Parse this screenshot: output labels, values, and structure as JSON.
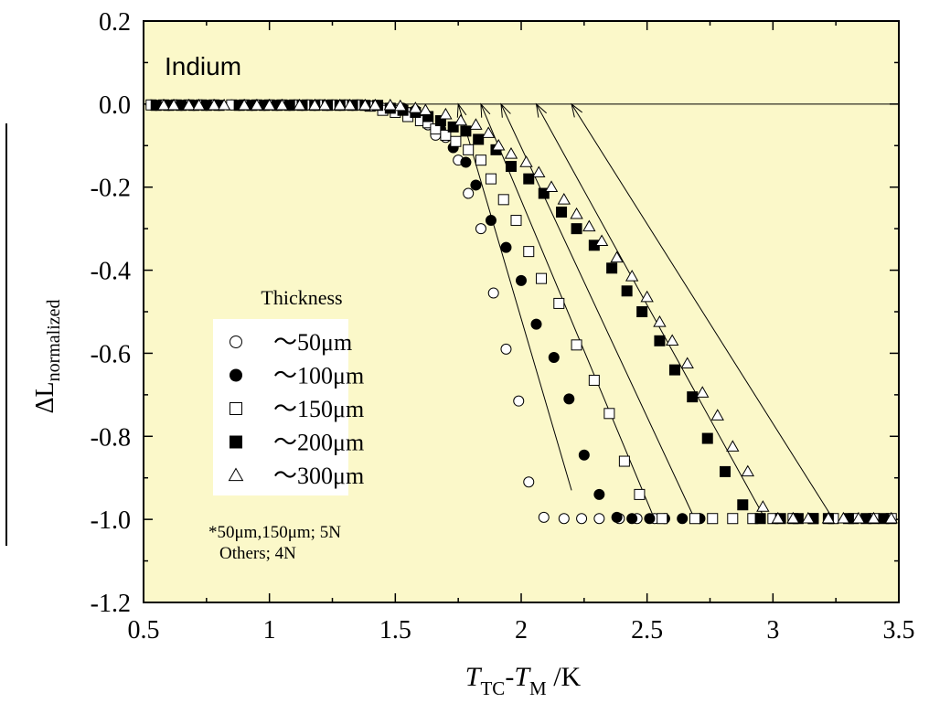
{
  "chart_data": {
    "type": "scatter",
    "annotation": "Indium",
    "ylabel": "ΔL",
    "ylabel_sub": "normalized",
    "xlabel_parts": [
      "T",
      "TC",
      "-",
      "T",
      "M",
      " /K"
    ],
    "xlim": [
      0.5,
      3.5
    ],
    "ylim": [
      -1.2,
      0.2
    ],
    "x_ticks": [
      0.5,
      1,
      1.5,
      2,
      2.5,
      3,
      3.5
    ],
    "x_tick_labels": [
      "0.5",
      "1",
      "1.5",
      "2",
      "2.5",
      "3",
      "3.5"
    ],
    "y_ticks": [
      0.2,
      0.0,
      -0.2,
      -0.4,
      -0.6,
      -0.8,
      -1.0,
      -1.2
    ],
    "y_tick_labels": [
      "0.2",
      "0.0",
      "-0.2",
      "-0.4",
      "-0.6",
      "-0.8",
      "-1.0",
      "-1.2"
    ],
    "background_color": "#fbf8c9",
    "grid": false,
    "legend": {
      "title": "Thickness",
      "placement": "lower-left",
      "entries": [
        "～50μm",
        "～100μm",
        "～150μm",
        "～200μm",
        "～300μm"
      ]
    },
    "note_lines": [
      "*50μm,150μm; 5N",
      "Others; 4N"
    ],
    "series": [
      {
        "marker": "circle-open",
        "x": [
          0.53,
          0.58,
          0.63,
          0.68,
          0.73,
          0.78,
          0.85,
          0.9,
          0.95,
          1.0,
          1.05,
          1.1,
          1.15,
          1.2,
          1.25,
          1.3,
          1.35,
          1.4,
          1.45,
          1.5,
          1.55,
          1.6,
          1.63,
          1.66,
          1.7,
          1.75,
          1.79,
          1.84,
          1.89,
          1.94,
          1.99,
          2.03,
          2.09,
          2.17,
          2.24,
          2.31,
          2.39,
          2.46,
          2.53
        ],
        "y": [
          -0.002,
          -0.002,
          -0.002,
          -0.002,
          -0.002,
          -0.002,
          -0.002,
          -0.002,
          -0.002,
          -0.002,
          -0.002,
          -0.002,
          -0.002,
          -0.002,
          -0.002,
          -0.002,
          -0.002,
          -0.005,
          -0.01,
          -0.015,
          -0.02,
          -0.03,
          -0.05,
          -0.075,
          -0.08,
          -0.135,
          -0.215,
          -0.3,
          -0.455,
          -0.59,
          -0.715,
          -0.91,
          -0.995,
          -0.998,
          -0.998,
          -0.998,
          -0.998,
          -0.998,
          -0.998
        ]
      },
      {
        "marker": "circle-filled",
        "x": [
          0.55,
          0.6,
          0.65,
          0.7,
          0.75,
          0.8,
          0.88,
          0.93,
          0.98,
          1.03,
          1.08,
          1.13,
          1.18,
          1.23,
          1.28,
          1.33,
          1.38,
          1.43,
          1.48,
          1.53,
          1.58,
          1.63,
          1.68,
          1.73,
          1.78,
          1.82,
          1.88,
          1.94,
          2.0,
          2.06,
          2.13,
          2.19,
          2.25,
          2.31,
          2.38,
          2.44,
          2.51,
          2.57,
          2.64,
          2.71
        ],
        "y": [
          -0.003,
          -0.003,
          -0.003,
          -0.003,
          -0.003,
          -0.003,
          -0.003,
          -0.003,
          -0.003,
          -0.003,
          -0.003,
          -0.003,
          -0.003,
          -0.003,
          -0.003,
          -0.003,
          -0.003,
          -0.003,
          -0.008,
          -0.01,
          -0.015,
          -0.03,
          -0.06,
          -0.105,
          -0.14,
          -0.195,
          -0.28,
          -0.345,
          -0.425,
          -0.53,
          -0.61,
          -0.71,
          -0.845,
          -0.94,
          -0.995,
          -0.998,
          -0.998,
          -0.998,
          -0.998,
          -0.998
        ]
      },
      {
        "marker": "square-open",
        "x": [
          0.53,
          0.58,
          0.63,
          0.68,
          0.73,
          0.78,
          0.85,
          0.9,
          0.95,
          1.0,
          1.05,
          1.1,
          1.15,
          1.2,
          1.25,
          1.3,
          1.35,
          1.4,
          1.45,
          1.5,
          1.55,
          1.6,
          1.63,
          1.66,
          1.7,
          1.74,
          1.79,
          1.84,
          1.88,
          1.93,
          1.98,
          2.03,
          2.08,
          2.15,
          2.22,
          2.29,
          2.35,
          2.41,
          2.47,
          2.56,
          2.69,
          2.76,
          2.84,
          2.92,
          3.0,
          3.08,
          3.16,
          3.24,
          3.32,
          3.4,
          3.47
        ],
        "y": [
          -0.002,
          -0.002,
          -0.002,
          -0.002,
          -0.002,
          -0.002,
          -0.002,
          -0.002,
          -0.002,
          -0.002,
          -0.002,
          -0.002,
          -0.002,
          -0.002,
          -0.002,
          -0.002,
          -0.002,
          -0.005,
          -0.015,
          -0.02,
          -0.03,
          -0.04,
          -0.045,
          -0.06,
          -0.075,
          -0.09,
          -0.11,
          -0.135,
          -0.18,
          -0.23,
          -0.28,
          -0.355,
          -0.42,
          -0.48,
          -0.58,
          -0.665,
          -0.745,
          -0.86,
          -0.94,
          -0.998,
          -0.998,
          -0.998,
          -0.998,
          -0.998,
          -0.998,
          -0.998,
          -0.998,
          -0.998,
          -0.998,
          -0.998,
          -0.998
        ]
      },
      {
        "marker": "square-filled",
        "x": [
          0.55,
          0.6,
          0.65,
          0.7,
          0.75,
          0.8,
          0.88,
          0.93,
          0.98,
          1.03,
          1.08,
          1.13,
          1.18,
          1.23,
          1.28,
          1.33,
          1.38,
          1.43,
          1.48,
          1.53,
          1.58,
          1.63,
          1.68,
          1.73,
          1.78,
          1.83,
          1.9,
          1.96,
          2.03,
          2.09,
          2.16,
          2.22,
          2.29,
          2.36,
          2.42,
          2.48,
          2.55,
          2.61,
          2.68,
          2.74,
          2.81,
          2.88,
          2.95,
          3.03,
          3.1,
          3.16,
          3.22,
          3.3,
          3.37,
          3.44
        ],
        "y": [
          -0.003,
          -0.003,
          -0.003,
          -0.003,
          -0.003,
          -0.003,
          -0.003,
          -0.003,
          -0.003,
          -0.003,
          -0.003,
          -0.003,
          -0.003,
          -0.003,
          -0.003,
          -0.003,
          -0.003,
          -0.003,
          -0.01,
          -0.015,
          -0.02,
          -0.03,
          -0.04,
          -0.055,
          -0.065,
          -0.085,
          -0.11,
          -0.15,
          -0.18,
          -0.215,
          -0.26,
          -0.3,
          -0.34,
          -0.395,
          -0.45,
          -0.5,
          -0.57,
          -0.64,
          -0.705,
          -0.805,
          -0.885,
          -0.965,
          -0.998,
          -0.998,
          -0.998,
          -0.998,
          -0.998,
          -0.998,
          -0.998,
          -0.998
        ]
      },
      {
        "marker": "triangle-open",
        "x": [
          0.58,
          0.62,
          0.68,
          0.72,
          0.78,
          0.82,
          0.9,
          0.95,
          1.0,
          1.05,
          1.12,
          1.18,
          1.22,
          1.28,
          1.32,
          1.38,
          1.42,
          1.48,
          1.52,
          1.58,
          1.62,
          1.7,
          1.76,
          1.82,
          1.87,
          1.91,
          1.96,
          2.02,
          2.07,
          2.12,
          2.17,
          2.22,
          2.27,
          2.32,
          2.38,
          2.44,
          2.5,
          2.55,
          2.6,
          2.66,
          2.72,
          2.78,
          2.84,
          2.9,
          2.96,
          3.02,
          3.08,
          3.14,
          3.22,
          3.28,
          3.34,
          3.4,
          3.47
        ],
        "y": [
          -0.003,
          -0.003,
          -0.003,
          -0.003,
          -0.003,
          -0.003,
          -0.003,
          -0.003,
          -0.003,
          -0.003,
          -0.003,
          -0.003,
          -0.003,
          -0.003,
          -0.003,
          -0.003,
          -0.003,
          -0.003,
          -0.005,
          -0.01,
          -0.015,
          -0.025,
          -0.04,
          -0.05,
          -0.07,
          -0.1,
          -0.12,
          -0.14,
          -0.165,
          -0.2,
          -0.23,
          -0.265,
          -0.295,
          -0.33,
          -0.37,
          -0.415,
          -0.465,
          -0.525,
          -0.57,
          -0.625,
          -0.695,
          -0.75,
          -0.825,
          -0.885,
          -0.97,
          -0.998,
          -0.998,
          -0.998,
          -0.998,
          -0.998,
          -0.998,
          -0.998,
          -0.998
        ]
      }
    ],
    "reference_line_y": 0.0,
    "fit_lines": [
      {
        "x": [
          1.75,
          2.2
        ],
        "y": [
          0.0,
          -0.93
        ]
      },
      {
        "x": [
          1.84,
          2.53
        ],
        "y": [
          0.0,
          -1.0
        ]
      },
      {
        "x": [
          1.92,
          2.69
        ],
        "y": [
          0.0,
          -1.0
        ]
      },
      {
        "x": [
          2.06,
          2.97
        ],
        "y": [
          0.0,
          -1.0
        ]
      },
      {
        "x": [
          2.2,
          3.24
        ],
        "y": [
          0.0,
          -1.0
        ]
      }
    ]
  }
}
